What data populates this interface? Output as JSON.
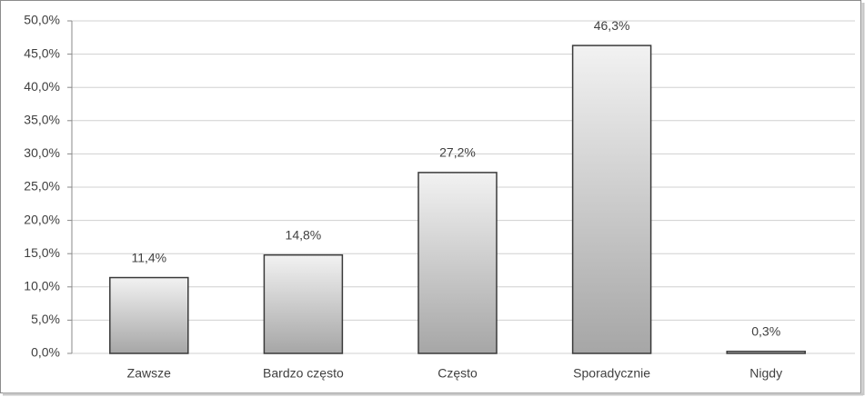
{
  "chart_data": {
    "type": "bar",
    "categories": [
      "Zawsze",
      "Bardzo często",
      "Często",
      "Sporadycznie",
      "Nigdy"
    ],
    "values": [
      11.4,
      14.8,
      27.2,
      46.3,
      0.3
    ],
    "value_labels": [
      "11,4%",
      "14,8%",
      "27,2%",
      "46,3%",
      "0,3%"
    ],
    "ylim": [
      0,
      50
    ],
    "yticks": [
      {
        "value": 0,
        "label": "0,0%"
      },
      {
        "value": 5,
        "label": "5,0%"
      },
      {
        "value": 10,
        "label": "10,0%"
      },
      {
        "value": 15,
        "label": "15,0%"
      },
      {
        "value": 20,
        "label": "20,0%"
      },
      {
        "value": 25,
        "label": "25,0%"
      },
      {
        "value": 30,
        "label": "30,0%"
      },
      {
        "value": 35,
        "label": "35,0%"
      },
      {
        "value": 40,
        "label": "40,0%"
      },
      {
        "value": 45,
        "label": "45,0%"
      },
      {
        "value": 50,
        "label": "50,0%"
      }
    ],
    "grid": true
  }
}
